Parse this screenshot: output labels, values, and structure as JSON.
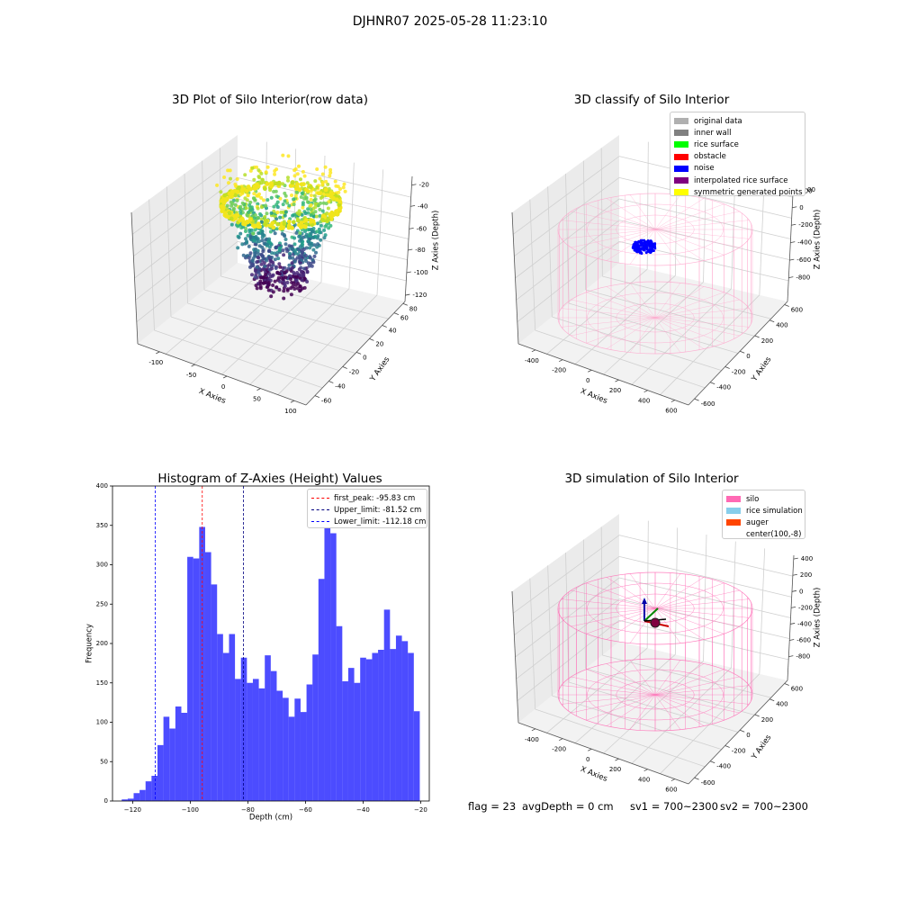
{
  "page": {
    "suptitle": "DJHNR07 2025-05-28 11:23:10"
  },
  "plots": {
    "raw": {
      "title": "3D Plot of Silo Interior(row data)",
      "xlabel": "X Axies",
      "ylabel": "Y Axies",
      "zlabel": "Z Axies (Depth)",
      "xticks": [
        "-100",
        "-50",
        "0",
        "50",
        "100"
      ],
      "yticks": [
        "-60",
        "-40",
        "-20",
        "0",
        "20",
        "40",
        "60",
        "80"
      ],
      "zticks": [
        "-20",
        "-40",
        "-60",
        "-80",
        "-100",
        "-120"
      ]
    },
    "classify": {
      "title": "3D classify of Silo Interior",
      "xlabel": "X Axies",
      "ylabel": "Y Axies",
      "zlabel": "Z Axies (Depth)",
      "xticks": [
        "-400",
        "-200",
        "0",
        "200",
        "400",
        "600"
      ],
      "yticks": [
        "-600",
        "-400",
        "-200",
        "0",
        "200",
        "400",
        "600"
      ],
      "zticks": [
        "200",
        "0",
        "-200",
        "-400",
        "-600",
        "-800"
      ],
      "zticks_partial": "00",
      "legend": [
        {
          "label": "original data",
          "color": "#b0b0b0"
        },
        {
          "label": "inner wall",
          "color": "#808080"
        },
        {
          "label": "rice surface",
          "color": "#00ff00"
        },
        {
          "label": "obstacle",
          "color": "#ff0000"
        },
        {
          "label": "noise",
          "color": "#0000ff"
        },
        {
          "label": "interpolated rice surface",
          "color": "#800080"
        },
        {
          "label": "symmetric generated points",
          "color": "#ffff00"
        }
      ]
    },
    "histogram": {
      "title": "Histogram of Z-Axies (Height) Values",
      "xlabel": "Depth (cm)",
      "ylabel": "Frequency",
      "legend": [
        {
          "label": "first_peak: -95.83 cm",
          "color": "#ff0000"
        },
        {
          "label": "Upper_limit: -81.52 cm",
          "color": "#000080"
        },
        {
          "label": "Lower_limit: -112.18 cm",
          "color": "#0000ff"
        }
      ]
    },
    "simulation": {
      "title": "3D simulation of Silo Interior",
      "xlabel": "X Axies",
      "ylabel": "Y Axies",
      "zlabel": "Z Axies (Depth)",
      "xticks": [
        "-400",
        "-200",
        "0",
        "200",
        "400",
        "600"
      ],
      "yticks": [
        "-600",
        "-400",
        "-200",
        "0",
        "200",
        "400",
        "600"
      ],
      "zticks": [
        "400",
        "200",
        "0",
        "-200",
        "-400",
        "-600",
        "-800"
      ],
      "legend": [
        {
          "label": "silo",
          "color": "#ff69b4"
        },
        {
          "label": "rice simulation",
          "color": "#87ceeb"
        },
        {
          "label": "auger",
          "color": "#ff4500"
        },
        {
          "label": "center(100,-8)",
          "color": "#ffffff"
        }
      ]
    }
  },
  "status": {
    "flag": "flag = 23",
    "avg": "avgDepth = 0 cm",
    "sv1": "sv1 = 700~2300",
    "sv2": "sv2 = 700~2300"
  },
  "chart_data": [
    {
      "type": "scatter",
      "title": "3D Plot of Silo Interior(row data)",
      "xlabel": "X Axies",
      "ylabel": "Y Axies",
      "zlabel": "Z Axies (Depth)",
      "xlim": [
        -130,
        110
      ],
      "ylim": [
        -65,
        85
      ],
      "zlim": [
        -130,
        -15
      ],
      "colormap": "viridis"
    },
    {
      "type": "scatter",
      "title": "3D classify of Silo Interior",
      "xlabel": "X Axies",
      "ylabel": "Y Axies",
      "zlabel": "Z Axies (Depth)",
      "xlim": [
        -500,
        700
      ],
      "ylim": [
        -650,
        650
      ],
      "zlim": [
        -900,
        300
      ],
      "series": [
        {
          "name": "noise",
          "color": "#0000ff"
        }
      ]
    },
    {
      "type": "bar",
      "title": "Histogram of Z-Axies (Height) Values",
      "xlabel": "Depth (cm)",
      "ylabel": "Frequency",
      "xlim": [
        -127,
        -17
      ],
      "ylim": [
        0,
        400
      ],
      "xticks": [
        -120,
        -100,
        -80,
        -60,
        -40,
        -20
      ],
      "yticks": [
        0,
        50,
        100,
        150,
        200,
        250,
        300,
        350,
        400
      ],
      "bin_start": -123.8,
      "bin_width": 2.07,
      "values": [
        2,
        3,
        10,
        14,
        25,
        32,
        71,
        107,
        92,
        120,
        112,
        310,
        308,
        348,
        316,
        275,
        212,
        188,
        212,
        155,
        182,
        150,
        155,
        143,
        185,
        165,
        140,
        131,
        107,
        130,
        113,
        148,
        186,
        282,
        365,
        340,
        222,
        152,
        169,
        150,
        182,
        180,
        188,
        192,
        243,
        193,
        210,
        203,
        188,
        114
      ],
      "color": "#0000ff",
      "vlines": [
        {
          "name": "first_peak: -95.83 cm",
          "x": -95.83,
          "color": "#ff0000"
        },
        {
          "name": "Upper_limit: -81.52 cm",
          "x": -81.52,
          "color": "#000080"
        },
        {
          "name": "Lower_limit: -112.18 cm",
          "x": -112.18,
          "color": "#0000ff"
        }
      ]
    },
    {
      "type": "scatter",
      "title": "3D simulation of Silo Interior",
      "xlabel": "X Axies",
      "ylabel": "Y Axies",
      "zlabel": "Z Axies (Depth)",
      "xlim": [
        -500,
        700
      ],
      "ylim": [
        -650,
        650
      ],
      "zlim": [
        -900,
        500
      ],
      "series": [
        {
          "name": "silo",
          "color": "#ff69b4"
        },
        {
          "name": "rice simulation",
          "color": "#87ceeb"
        },
        {
          "name": "auger",
          "color": "#ff4500"
        }
      ]
    }
  ]
}
